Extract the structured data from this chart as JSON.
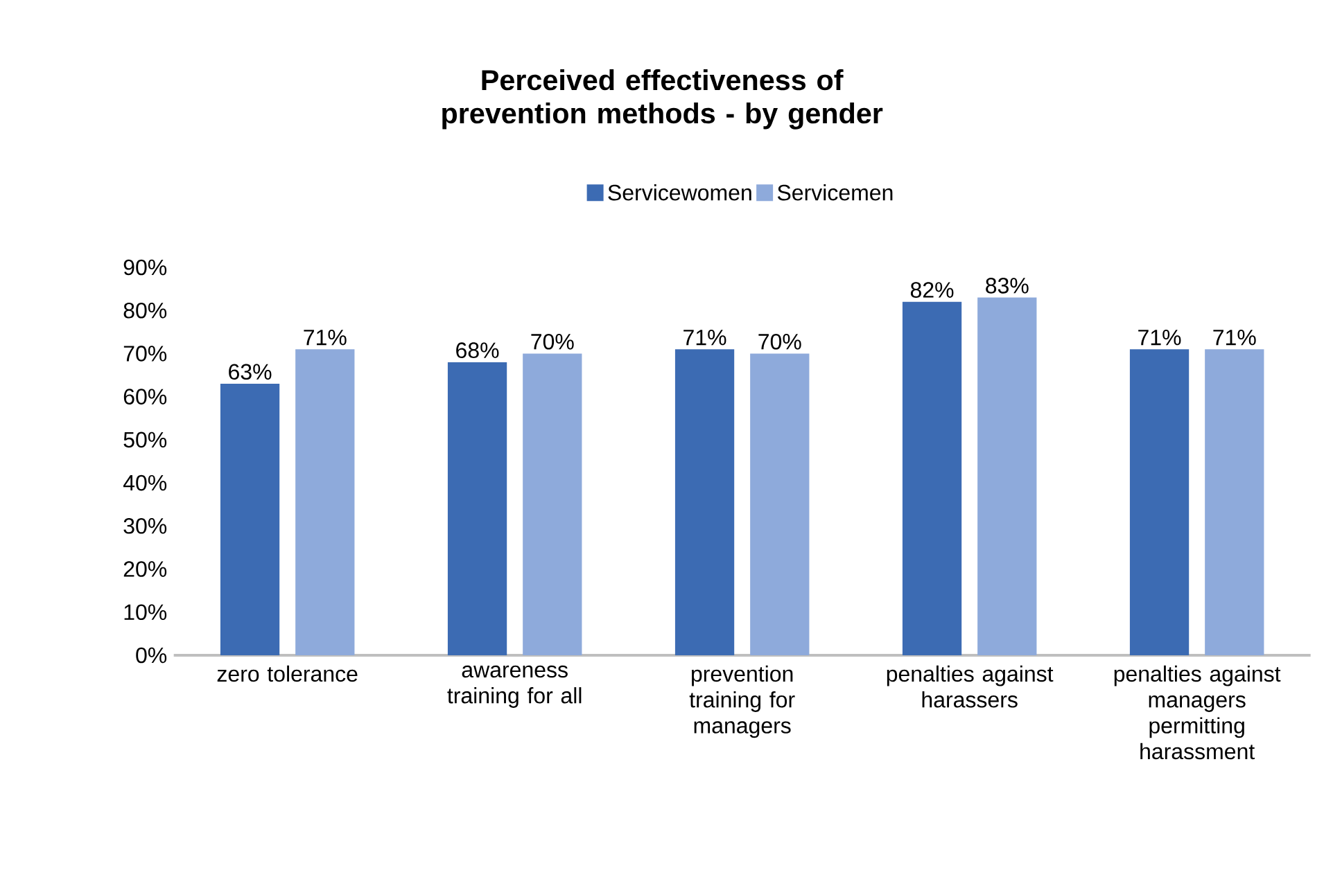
{
  "chart_data": {
    "type": "bar",
    "title": "Perceived effectiveness of prevention methods - by gender",
    "categories": [
      "zero tolerance",
      "awareness training for all",
      "prevention training for managers",
      "penalties against harassers",
      "penalties against managers permitting harassment"
    ],
    "series": [
      {
        "name": "Servicewomen",
        "color": "#3c6bb3",
        "values": [
          63,
          68,
          71,
          82,
          71
        ],
        "value_labels": [
          "63%",
          "68%",
          "71%",
          "82%",
          "71%"
        ]
      },
      {
        "name": "Servicemen",
        "color": "#8eaadb",
        "values": [
          71,
          70,
          70,
          83,
          71
        ],
        "value_labels": [
          "71%",
          "70%",
          "70%",
          "83%",
          "71%"
        ]
      }
    ],
    "ylim": [
      0,
      90
    ],
    "yticks": [
      {
        "value": 0,
        "label": "0%"
      },
      {
        "value": 10,
        "label": "10%"
      },
      {
        "value": 20,
        "label": "20%"
      },
      {
        "value": 30,
        "label": "30%"
      },
      {
        "value": 40,
        "label": "40%"
      },
      {
        "value": 50,
        "label": "50%"
      },
      {
        "value": 60,
        "label": "60%"
      },
      {
        "value": 70,
        "label": "70%"
      },
      {
        "value": 80,
        "label": "80%"
      },
      {
        "value": 90,
        "label": "90%"
      }
    ],
    "legend": "top"
  }
}
